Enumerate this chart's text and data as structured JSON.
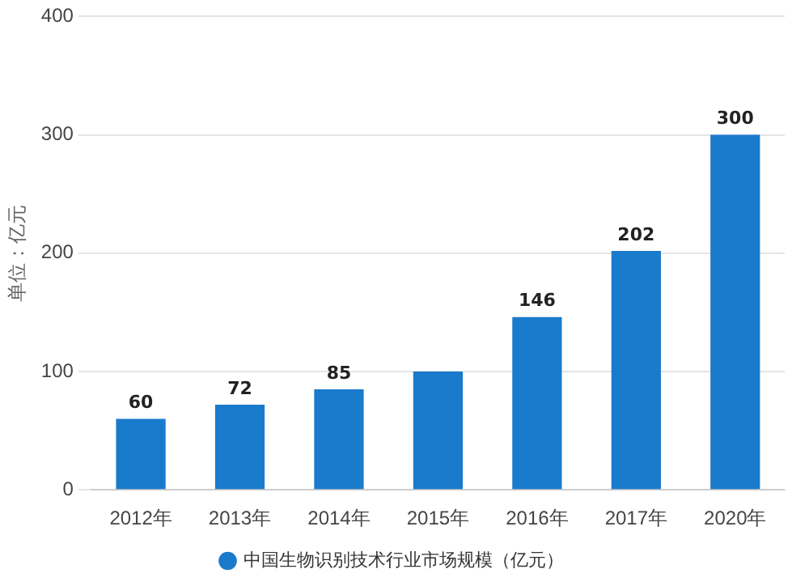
{
  "chart_data": {
    "type": "bar",
    "ylabel": "单位：亿元",
    "categories": [
      "2012年",
      "2013年",
      "2014年",
      "2015年",
      "2016年",
      "2017年",
      "2020年"
    ],
    "series": [
      {
        "name": "中国生物识别技术行业市场规模（亿元）",
        "color": "#1a7acb",
        "values": [
          60,
          72,
          85,
          100,
          146,
          202,
          300
        ],
        "value_labels": [
          "60",
          "72",
          "85",
          null,
          "146",
          "202",
          "300"
        ]
      }
    ],
    "ylim": [
      0,
      400
    ],
    "yticks": [
      0,
      100,
      200,
      300,
      400
    ],
    "grid": "y",
    "legend": "bottom"
  }
}
